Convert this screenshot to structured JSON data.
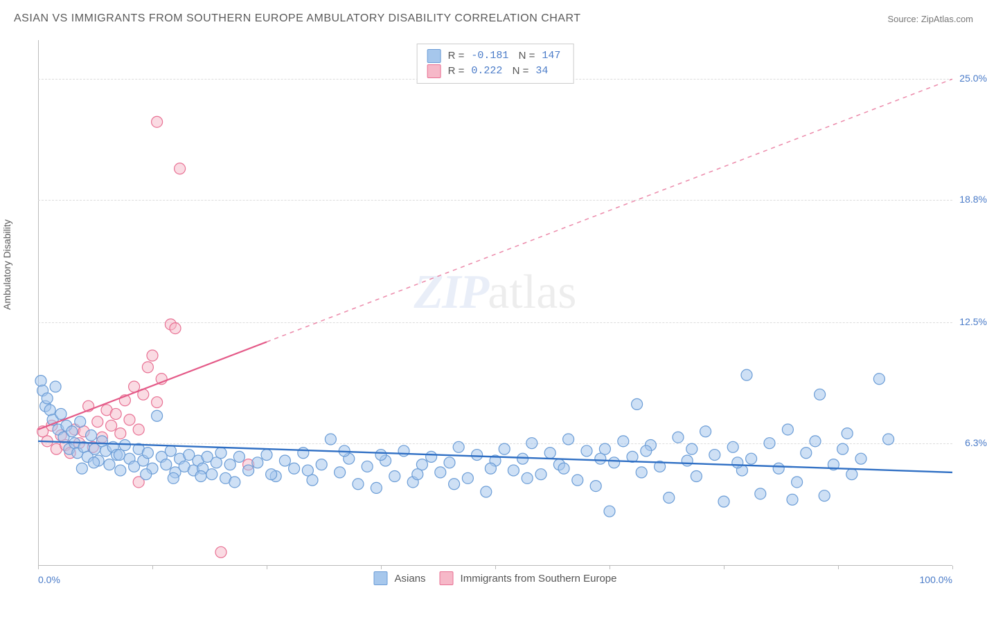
{
  "header": {
    "title": "ASIAN VS IMMIGRANTS FROM SOUTHERN EUROPE AMBULATORY DISABILITY CORRELATION CHART",
    "source": "Source: ZipAtlas.com"
  },
  "axes": {
    "y_label": "Ambulatory Disability",
    "ymin": 0.0,
    "ymax": 27.0,
    "yticks": [
      {
        "value": 6.3,
        "label": "6.3%"
      },
      {
        "value": 12.5,
        "label": "12.5%"
      },
      {
        "value": 18.8,
        "label": "18.8%"
      },
      {
        "value": 25.0,
        "label": "25.0%"
      }
    ],
    "xmin": 0.0,
    "xmax": 100.0,
    "x_left_label": "0.0%",
    "x_right_label": "100.0%",
    "x_tick_positions": [
      0,
      12.5,
      25,
      37.5,
      50,
      62.5,
      75,
      87.5,
      100
    ],
    "grid_color": "#dcdcdc",
    "axis_color": "#bbbbbb"
  },
  "watermark": {
    "zip": "ZIP",
    "atlas": "atlas"
  },
  "series": {
    "asians": {
      "label": "Asians",
      "color_fill": "#a6c7ec",
      "color_stroke": "#6a9cd6",
      "marker_radius": 8,
      "fill_opacity": 0.55,
      "trend": {
        "color": "#2f6fc4",
        "width": 2.4,
        "x1": 0,
        "y1": 6.4,
        "x2": 100,
        "y2": 4.8,
        "dash_from_x": 100
      },
      "R": "-0.181",
      "N": "147",
      "points": [
        {
          "x": 0.3,
          "y": 9.5
        },
        {
          "x": 0.5,
          "y": 9.0
        },
        {
          "x": 0.8,
          "y": 8.2
        },
        {
          "x": 1.0,
          "y": 8.6
        },
        {
          "x": 1.3,
          "y": 8.0
        },
        {
          "x": 1.6,
          "y": 7.5
        },
        {
          "x": 1.9,
          "y": 9.2
        },
        {
          "x": 2.2,
          "y": 7.0
        },
        {
          "x": 2.5,
          "y": 7.8
        },
        {
          "x": 2.8,
          "y": 6.6
        },
        {
          "x": 3.1,
          "y": 7.2
        },
        {
          "x": 3.4,
          "y": 6.0
        },
        {
          "x": 3.7,
          "y": 6.9
        },
        {
          "x": 4.0,
          "y": 6.3
        },
        {
          "x": 4.3,
          "y": 5.8
        },
        {
          "x": 4.6,
          "y": 7.4
        },
        {
          "x": 5.0,
          "y": 6.1
        },
        {
          "x": 5.4,
          "y": 5.6
        },
        {
          "x": 5.8,
          "y": 6.7
        },
        {
          "x": 6.2,
          "y": 6.0
        },
        {
          "x": 6.6,
          "y": 5.4
        },
        {
          "x": 7.0,
          "y": 6.4
        },
        {
          "x": 7.4,
          "y": 5.9
        },
        {
          "x": 7.8,
          "y": 5.2
        },
        {
          "x": 8.2,
          "y": 6.1
        },
        {
          "x": 8.6,
          "y": 5.7
        },
        {
          "x": 9.0,
          "y": 4.9
        },
        {
          "x": 9.5,
          "y": 6.2
        },
        {
          "x": 10.0,
          "y": 5.5
        },
        {
          "x": 10.5,
          "y": 5.1
        },
        {
          "x": 11.0,
          "y": 6.0
        },
        {
          "x": 11.5,
          "y": 5.4
        },
        {
          "x": 12.0,
          "y": 5.8
        },
        {
          "x": 12.5,
          "y": 5.0
        },
        {
          "x": 13.0,
          "y": 7.7
        },
        {
          "x": 13.5,
          "y": 5.6
        },
        {
          "x": 14.0,
          "y": 5.2
        },
        {
          "x": 14.5,
          "y": 5.9
        },
        {
          "x": 15.0,
          "y": 4.8
        },
        {
          "x": 15.5,
          "y": 5.5
        },
        {
          "x": 16.0,
          "y": 5.1
        },
        {
          "x": 16.5,
          "y": 5.7
        },
        {
          "x": 17.0,
          "y": 4.9
        },
        {
          "x": 17.5,
          "y": 5.4
        },
        {
          "x": 18.0,
          "y": 5.0
        },
        {
          "x": 18.5,
          "y": 5.6
        },
        {
          "x": 19.0,
          "y": 4.7
        },
        {
          "x": 19.5,
          "y": 5.3
        },
        {
          "x": 20.0,
          "y": 5.8
        },
        {
          "x": 20.5,
          "y": 4.5
        },
        {
          "x": 21.0,
          "y": 5.2
        },
        {
          "x": 22.0,
          "y": 5.6
        },
        {
          "x": 23.0,
          "y": 4.9
        },
        {
          "x": 24.0,
          "y": 5.3
        },
        {
          "x": 25.0,
          "y": 5.7
        },
        {
          "x": 26.0,
          "y": 4.6
        },
        {
          "x": 27.0,
          "y": 5.4
        },
        {
          "x": 28.0,
          "y": 5.0
        },
        {
          "x": 29.0,
          "y": 5.8
        },
        {
          "x": 30.0,
          "y": 4.4
        },
        {
          "x": 31.0,
          "y": 5.2
        },
        {
          "x": 32.0,
          "y": 6.5
        },
        {
          "x": 33.0,
          "y": 4.8
        },
        {
          "x": 34.0,
          "y": 5.5
        },
        {
          "x": 35.0,
          "y": 4.2
        },
        {
          "x": 36.0,
          "y": 5.1
        },
        {
          "x": 37.0,
          "y": 4.0
        },
        {
          "x": 38.0,
          "y": 5.4
        },
        {
          "x": 39.0,
          "y": 4.6
        },
        {
          "x": 40.0,
          "y": 5.9
        },
        {
          "x": 41.0,
          "y": 4.3
        },
        {
          "x": 42.0,
          "y": 5.2
        },
        {
          "x": 43.0,
          "y": 5.6
        },
        {
          "x": 44.0,
          "y": 4.8
        },
        {
          "x": 45.0,
          "y": 5.3
        },
        {
          "x": 46.0,
          "y": 6.1
        },
        {
          "x": 47.0,
          "y": 4.5
        },
        {
          "x": 48.0,
          "y": 5.7
        },
        {
          "x": 49.0,
          "y": 3.8
        },
        {
          "x": 50.0,
          "y": 5.4
        },
        {
          "x": 51.0,
          "y": 6.0
        },
        {
          "x": 52.0,
          "y": 4.9
        },
        {
          "x": 53.0,
          "y": 5.5
        },
        {
          "x": 54.0,
          "y": 6.3
        },
        {
          "x": 55.0,
          "y": 4.7
        },
        {
          "x": 56.0,
          "y": 5.8
        },
        {
          "x": 57.0,
          "y": 5.2
        },
        {
          "x": 58.0,
          "y": 6.5
        },
        {
          "x": 59.0,
          "y": 4.4
        },
        {
          "x": 60.0,
          "y": 5.9
        },
        {
          "x": 61.0,
          "y": 4.1
        },
        {
          "x": 62.0,
          "y": 6.0
        },
        {
          "x": 62.5,
          "y": 2.8
        },
        {
          "x": 63.0,
          "y": 5.3
        },
        {
          "x": 64.0,
          "y": 6.4
        },
        {
          "x": 65.0,
          "y": 5.6
        },
        {
          "x": 65.5,
          "y": 8.3
        },
        {
          "x": 66.0,
          "y": 4.8
        },
        {
          "x": 67.0,
          "y": 6.2
        },
        {
          "x": 68.0,
          "y": 5.1
        },
        {
          "x": 69.0,
          "y": 3.5
        },
        {
          "x": 70.0,
          "y": 6.6
        },
        {
          "x": 71.0,
          "y": 5.4
        },
        {
          "x": 72.0,
          "y": 4.6
        },
        {
          "x": 73.0,
          "y": 6.9
        },
        {
          "x": 74.0,
          "y": 5.7
        },
        {
          "x": 75.0,
          "y": 3.3
        },
        {
          "x": 76.0,
          "y": 6.1
        },
        {
          "x": 77.0,
          "y": 4.9
        },
        {
          "x": 77.5,
          "y": 9.8
        },
        {
          "x": 78.0,
          "y": 5.5
        },
        {
          "x": 79.0,
          "y": 3.7
        },
        {
          "x": 80.0,
          "y": 6.3
        },
        {
          "x": 81.0,
          "y": 5.0
        },
        {
          "x": 82.0,
          "y": 7.0
        },
        {
          "x": 83.0,
          "y": 4.3
        },
        {
          "x": 84.0,
          "y": 5.8
        },
        {
          "x": 85.0,
          "y": 6.4
        },
        {
          "x": 85.5,
          "y": 8.8
        },
        {
          "x": 86.0,
          "y": 3.6
        },
        {
          "x": 87.0,
          "y": 5.2
        },
        {
          "x": 88.0,
          "y": 6.0
        },
        {
          "x": 89.0,
          "y": 4.7
        },
        {
          "x": 90.0,
          "y": 5.5
        },
        {
          "x": 92.0,
          "y": 9.6
        },
        {
          "x": 93.0,
          "y": 6.5
        },
        {
          "x": 4.8,
          "y": 5.0
        },
        {
          "x": 6.1,
          "y": 5.3
        },
        {
          "x": 8.9,
          "y": 5.7
        },
        {
          "x": 11.8,
          "y": 4.7
        },
        {
          "x": 14.8,
          "y": 4.5
        },
        {
          "x": 17.8,
          "y": 4.6
        },
        {
          "x": 21.5,
          "y": 4.3
        },
        {
          "x": 25.5,
          "y": 4.7
        },
        {
          "x": 29.5,
          "y": 4.9
        },
        {
          "x": 33.5,
          "y": 5.9
        },
        {
          "x": 37.5,
          "y": 5.7
        },
        {
          "x": 41.5,
          "y": 4.7
        },
        {
          "x": 45.5,
          "y": 4.2
        },
        {
          "x": 49.5,
          "y": 5.0
        },
        {
          "x": 53.5,
          "y": 4.5
        },
        {
          "x": 57.5,
          "y": 5.0
        },
        {
          "x": 61.5,
          "y": 5.5
        },
        {
          "x": 66.5,
          "y": 5.9
        },
        {
          "x": 71.5,
          "y": 6.0
        },
        {
          "x": 76.5,
          "y": 5.3
        },
        {
          "x": 82.5,
          "y": 3.4
        },
        {
          "x": 88.5,
          "y": 6.8
        }
      ]
    },
    "immigrants": {
      "label": "Immigrants from Southern Europe",
      "color_fill": "#f6b8c8",
      "color_stroke": "#e87093",
      "marker_radius": 8,
      "fill_opacity": 0.5,
      "trend": {
        "color": "#e45a88",
        "width": 2.2,
        "x1": 0,
        "y1": 7.0,
        "x2": 100,
        "y2": 25.0,
        "dash_from_x": 25
      },
      "R": "0.222",
      "N": "34",
      "points": [
        {
          "x": 0.5,
          "y": 6.9
        },
        {
          "x": 1.0,
          "y": 6.4
        },
        {
          "x": 1.5,
          "y": 7.2
        },
        {
          "x": 2.0,
          "y": 6.0
        },
        {
          "x": 2.5,
          "y": 6.7
        },
        {
          "x": 3.0,
          "y": 6.2
        },
        {
          "x": 3.5,
          "y": 5.8
        },
        {
          "x": 4.0,
          "y": 7.0
        },
        {
          "x": 4.5,
          "y": 6.3
        },
        {
          "x": 5.0,
          "y": 6.9
        },
        {
          "x": 5.5,
          "y": 8.2
        },
        {
          "x": 6.0,
          "y": 6.1
        },
        {
          "x": 6.5,
          "y": 7.4
        },
        {
          "x": 7.0,
          "y": 6.6
        },
        {
          "x": 7.5,
          "y": 8.0
        },
        {
          "x": 8.0,
          "y": 7.2
        },
        {
          "x": 8.5,
          "y": 7.8
        },
        {
          "x": 9.0,
          "y": 6.8
        },
        {
          "x": 9.5,
          "y": 8.5
        },
        {
          "x": 10.0,
          "y": 7.5
        },
        {
          "x": 10.5,
          "y": 9.2
        },
        {
          "x": 11.0,
          "y": 7.0
        },
        {
          "x": 11.5,
          "y": 8.8
        },
        {
          "x": 12.0,
          "y": 10.2
        },
        {
          "x": 12.5,
          "y": 10.8
        },
        {
          "x": 13.0,
          "y": 8.4
        },
        {
          "x": 13.5,
          "y": 9.6
        },
        {
          "x": 14.5,
          "y": 12.4
        },
        {
          "x": 15.0,
          "y": 12.2
        },
        {
          "x": 13.0,
          "y": 22.8
        },
        {
          "x": 15.5,
          "y": 20.4
        },
        {
          "x": 11.0,
          "y": 4.3
        },
        {
          "x": 20.0,
          "y": 0.7
        },
        {
          "x": 23.0,
          "y": 5.2
        }
      ]
    }
  }
}
